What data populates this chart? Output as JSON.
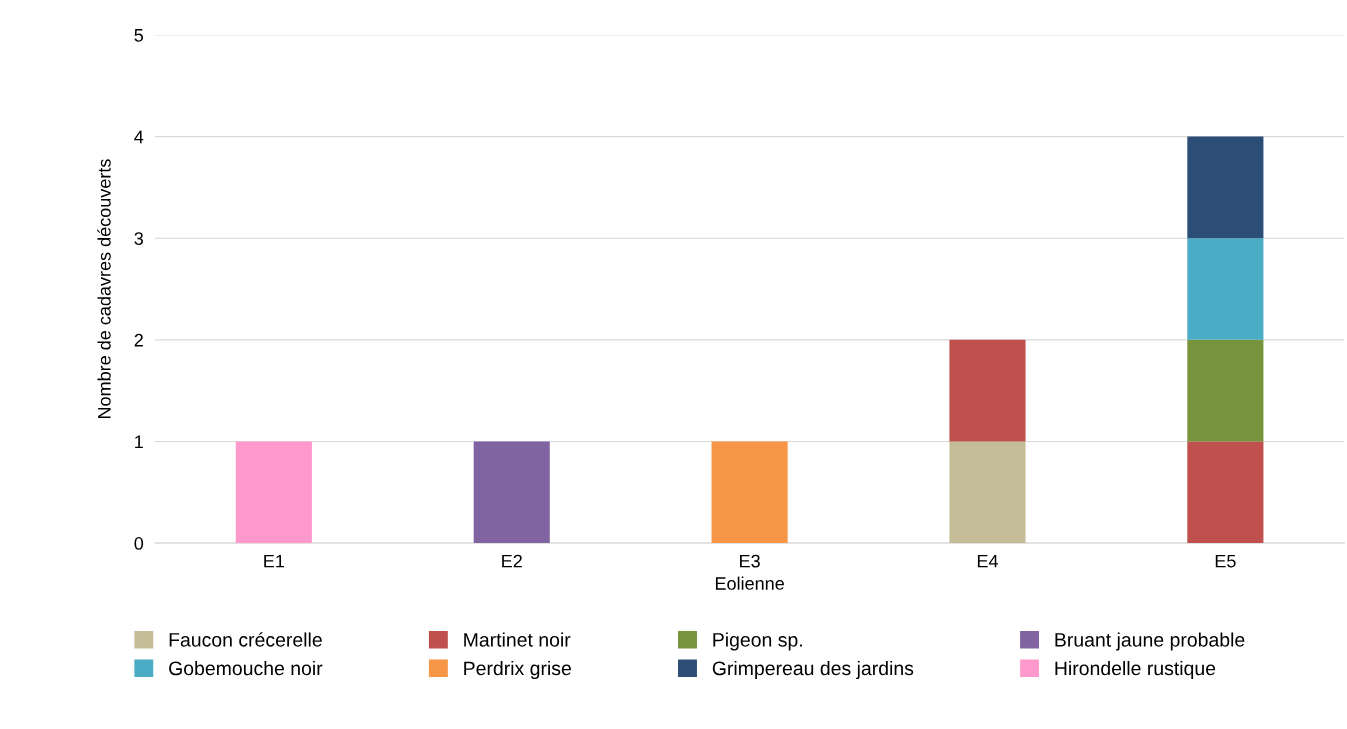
{
  "chart_data": {
    "type": "bar",
    "stacked": true,
    "xlabel": "Eolienne",
    "ylabel": "Nombre de cadavres découverts",
    "categories": [
      "E1",
      "E2",
      "E3",
      "E4",
      "E5"
    ],
    "series": [
      {
        "name": "Faucon crécerelle",
        "color": "#c4bd97",
        "values": [
          null,
          null,
          null,
          1,
          null
        ]
      },
      {
        "name": "Martinet noir",
        "color": "#c0504d",
        "values": [
          null,
          null,
          null,
          1,
          1
        ]
      },
      {
        "name": "Pigeon sp.",
        "color": "#77933c",
        "values": [
          null,
          null,
          null,
          null,
          1
        ]
      },
      {
        "name": "Bruant jaune probable",
        "color": "#8064a2",
        "values": [
          null,
          1,
          null,
          null,
          null
        ]
      },
      {
        "name": "Gobemouche noir",
        "color": "#4bacc6",
        "values": [
          null,
          null,
          null,
          null,
          1
        ]
      },
      {
        "name": "Perdrix grise",
        "color": "#f79646",
        "values": [
          null,
          null,
          1,
          null,
          null
        ]
      },
      {
        "name": "Grimpereau des jardins",
        "color": "#2c4d75",
        "values": [
          null,
          null,
          null,
          null,
          1
        ]
      },
      {
        "name": "Hirondelle rustique",
        "color": "#ff99cc",
        "values": [
          1,
          null,
          null,
          null,
          null
        ]
      }
    ],
    "ylim": [
      0,
      5
    ],
    "yticks": [
      0,
      1,
      2,
      3,
      4,
      5
    ],
    "grid": "y",
    "legend": "bottom"
  }
}
